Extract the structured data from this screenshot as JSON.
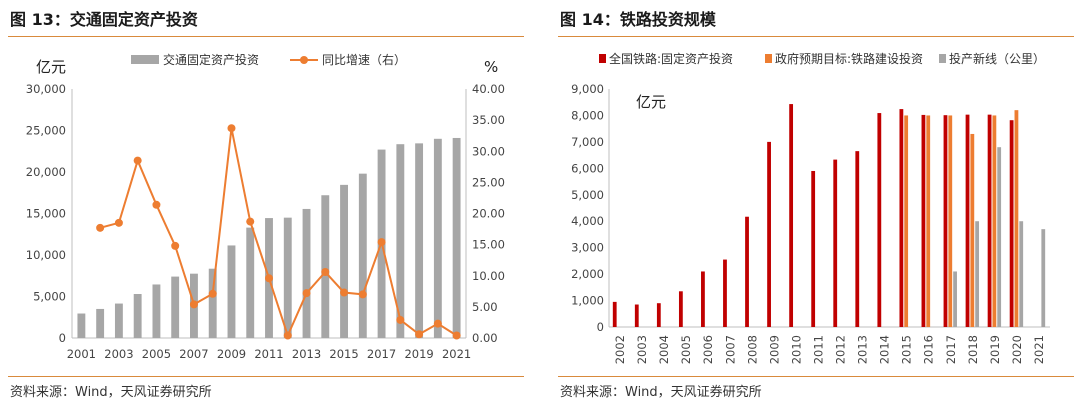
{
  "panel1": {
    "title": "图 13：交通固定资产投资",
    "source": "资料来源：Wind，天风证券研究所"
  },
  "panel2": {
    "title": "图 14：铁路投资规模",
    "source": "资料来源：Wind，天风证券研究所"
  },
  "colors": {
    "gray_bar": "#a6a6a6",
    "orange_line": "#ed7d31",
    "red_bar": "#c00000",
    "orange_bar": "#ed7d31",
    "gray_bar2": "#a6a6a6",
    "accent_rule": "#d98a3c"
  },
  "chart_data": [
    {
      "type": "bar",
      "ylabel_left": "亿元",
      "ylabel_right": "%",
      "categories": [
        "2001",
        "2002",
        "2003",
        "2004",
        "2005",
        "2006",
        "2007",
        "2008",
        "2009",
        "2010",
        "2011",
        "2012",
        "2013",
        "2014",
        "2015",
        "2016",
        "2017",
        "2018",
        "2019",
        "2020",
        "2021"
      ],
      "x_tick_labels": [
        "2001",
        "2003",
        "2005",
        "2007",
        "2009",
        "2011",
        "2013",
        "2015",
        "2017",
        "2019",
        "2021"
      ],
      "ylim_left": [
        0,
        30000
      ],
      "yticks_left": [
        "0",
        "5,000",
        "10,000",
        "15,000",
        "20,000",
        "25,000",
        "30,000"
      ],
      "ylim_right": [
        0,
        40
      ],
      "yticks_right": [
        "0.00",
        "5.00",
        "10.00",
        "15.00",
        "20.00",
        "25.00",
        "30.00",
        "35.00",
        "40.00"
      ],
      "legend_position": "top",
      "series": [
        {
          "name": "交通固定资产投资",
          "kind": "bar",
          "axis": "left",
          "values": [
            2950,
            3500,
            4150,
            5300,
            6450,
            7400,
            7750,
            8350,
            11150,
            13300,
            14450,
            14500,
            15550,
            17200,
            18450,
            19800,
            22700,
            23350,
            23450,
            24000,
            24100
          ]
        },
        {
          "name": "同比增速（右）",
          "kind": "line",
          "axis": "right",
          "values": [
            null,
            17.7,
            18.5,
            28.5,
            21.4,
            14.8,
            5.4,
            7.1,
            33.7,
            18.7,
            9.6,
            0.4,
            7.2,
            10.6,
            7.3,
            7.0,
            15.4,
            2.9,
            0.6,
            2.3,
            0.4
          ]
        }
      ]
    },
    {
      "type": "bar",
      "ylabel": "亿元",
      "categories": [
        "2002",
        "2003",
        "2004",
        "2005",
        "2006",
        "2007",
        "2008",
        "2009",
        "2010",
        "2011",
        "2012",
        "2013",
        "2014",
        "2015",
        "2016",
        "2017",
        "2018",
        "2019",
        "2020",
        "2021"
      ],
      "ylim": [
        0,
        9000
      ],
      "yticks": [
        "0",
        "1,000",
        "2,000",
        "3,000",
        "4,000",
        "5,000",
        "6,000",
        "7,000",
        "8,000",
        "9,000"
      ],
      "legend_position": "top",
      "series": [
        {
          "name": "全国铁路:固定资产投资",
          "values": [
            950,
            850,
            900,
            1350,
            2100,
            2550,
            4170,
            7000,
            8430,
            5900,
            6330,
            6650,
            8090,
            8240,
            8020,
            8010,
            8030,
            8030,
            7820,
            null
          ]
        },
        {
          "name": "政府预期目标:铁路建设投资",
          "values": [
            null,
            null,
            null,
            null,
            null,
            null,
            null,
            null,
            null,
            null,
            null,
            null,
            null,
            8000,
            8000,
            8000,
            7300,
            8000,
            8200,
            null
          ]
        },
        {
          "name": "投产新线（公里）",
          "values": [
            null,
            null,
            null,
            null,
            null,
            null,
            null,
            null,
            null,
            null,
            null,
            null,
            null,
            null,
            null,
            2100,
            4000,
            6800,
            4000,
            3700
          ]
        }
      ]
    }
  ]
}
